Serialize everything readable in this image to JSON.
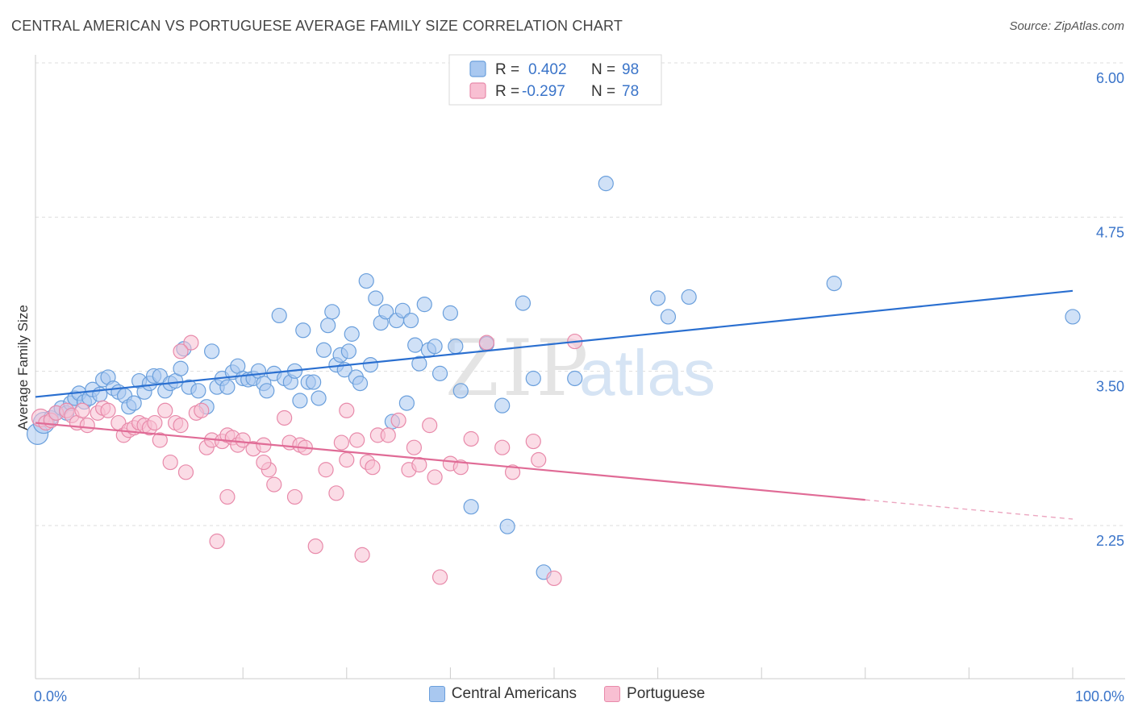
{
  "header": {
    "title": "CENTRAL AMERICAN VS PORTUGUESE AVERAGE FAMILY SIZE CORRELATION CHART",
    "source": "Source: ZipAtlas.com"
  },
  "watermark": {
    "zip": "ZIP",
    "atlas": "atlas"
  },
  "colors": {
    "blue_fill": "#a9c8f0",
    "blue_stroke": "#6a9fdc",
    "blue_line": "#2a6fd0",
    "pink_fill": "#f8bfd2",
    "pink_stroke": "#e88aaa",
    "pink_line": "#e06b96",
    "tick_label": "#3a74c9",
    "grid": "#dddddd"
  },
  "chart_data": {
    "type": "scatter",
    "title": "CENTRAL AMERICAN VS PORTUGUESE AVERAGE FAMILY SIZE CORRELATION CHART",
    "xlabel": "",
    "ylabel": "Average Family Size",
    "xlim": [
      0,
      100
    ],
    "ylim": [
      1.2,
      6.15
    ],
    "x_tick_labels": [
      "0.0%",
      "100.0%"
    ],
    "y_ticks": [
      2.25,
      3.5,
      4.75,
      6.0
    ],
    "y_tick_labels": [
      "2.25",
      "3.50",
      "4.75",
      "6.00"
    ],
    "grid": true,
    "legend_position": "top-center",
    "legend": [
      {
        "r_label": "R =",
        "r_value": "0.402",
        "n_label": "N =",
        "n_value": "98"
      },
      {
        "r_label": "R =",
        "r_value": "-0.297",
        "n_label": "N =",
        "n_value": "78"
      }
    ],
    "series": [
      {
        "name": "Central Americans",
        "color": "#a9c8f0",
        "trend": {
          "x": [
            0,
            100
          ],
          "y": [
            3.41,
            4.27
          ],
          "solid_until": 100
        },
        "points": [
          [
            0.2,
            3.11
          ],
          [
            0.8,
            3.2
          ],
          [
            1.5,
            3.24
          ],
          [
            2.0,
            3.28
          ],
          [
            2.5,
            3.32
          ],
          [
            3.0,
            3.28
          ],
          [
            3.4,
            3.36
          ],
          [
            3.8,
            3.4
          ],
          [
            4.2,
            3.44
          ],
          [
            4.7,
            3.37
          ],
          [
            5.2,
            3.4
          ],
          [
            5.5,
            3.47
          ],
          [
            6.2,
            3.43
          ],
          [
            6.5,
            3.55
          ],
          [
            7.0,
            3.57
          ],
          [
            7.5,
            3.48
          ],
          [
            8.0,
            3.45
          ],
          [
            8.6,
            3.42
          ],
          [
            9.0,
            3.33
          ],
          [
            9.5,
            3.36
          ],
          [
            10.0,
            3.54
          ],
          [
            10.5,
            3.45
          ],
          [
            11.0,
            3.52
          ],
          [
            11.4,
            3.58
          ],
          [
            12.0,
            3.58
          ],
          [
            12.5,
            3.46
          ],
          [
            13.0,
            3.52
          ],
          [
            13.5,
            3.54
          ],
          [
            14.0,
            3.64
          ],
          [
            14.3,
            3.8
          ],
          [
            14.8,
            3.49
          ],
          [
            15.7,
            3.46
          ],
          [
            16.5,
            3.33
          ],
          [
            17.0,
            3.78
          ],
          [
            17.5,
            3.49
          ],
          [
            18.0,
            3.56
          ],
          [
            18.5,
            3.49
          ],
          [
            19.0,
            3.61
          ],
          [
            19.5,
            3.66
          ],
          [
            20.0,
            3.56
          ],
          [
            20.5,
            3.55
          ],
          [
            21.0,
            3.56
          ],
          [
            21.5,
            3.62
          ],
          [
            22.0,
            3.52
          ],
          [
            22.3,
            3.46
          ],
          [
            23.0,
            3.6
          ],
          [
            23.5,
            4.07
          ],
          [
            24.0,
            3.56
          ],
          [
            24.6,
            3.53
          ],
          [
            25.0,
            3.62
          ],
          [
            25.5,
            3.38
          ],
          [
            25.8,
            3.95
          ],
          [
            26.3,
            3.53
          ],
          [
            26.8,
            3.53
          ],
          [
            27.3,
            3.4
          ],
          [
            27.8,
            3.79
          ],
          [
            28.2,
            3.99
          ],
          [
            28.6,
            4.1
          ],
          [
            29.0,
            3.67
          ],
          [
            29.4,
            3.75
          ],
          [
            29.8,
            3.63
          ],
          [
            30.2,
            3.78
          ],
          [
            30.5,
            3.92
          ],
          [
            30.9,
            3.57
          ],
          [
            31.3,
            3.52
          ],
          [
            31.9,
            4.35
          ],
          [
            32.3,
            3.67
          ],
          [
            32.8,
            4.21
          ],
          [
            33.3,
            4.01
          ],
          [
            33.8,
            4.1
          ],
          [
            34.4,
            3.21
          ],
          [
            34.8,
            4.03
          ],
          [
            35.4,
            4.11
          ],
          [
            35.8,
            3.36
          ],
          [
            36.2,
            4.03
          ],
          [
            36.6,
            3.83
          ],
          [
            37.0,
            3.68
          ],
          [
            37.5,
            4.16
          ],
          [
            37.9,
            3.79
          ],
          [
            38.5,
            3.82
          ],
          [
            39.0,
            3.6
          ],
          [
            40.0,
            4.09
          ],
          [
            40.5,
            3.82
          ],
          [
            41.0,
            3.46
          ],
          [
            42.0,
            2.52
          ],
          [
            43.5,
            3.84
          ],
          [
            45.0,
            3.34
          ],
          [
            47.0,
            4.17
          ],
          [
            48.0,
            3.56
          ],
          [
            49.0,
            1.99
          ],
          [
            52.0,
            3.56
          ],
          [
            55.0,
            5.14
          ],
          [
            60.0,
            4.21
          ],
          [
            61.0,
            4.06
          ],
          [
            63.0,
            4.22
          ],
          [
            77.0,
            4.33
          ],
          [
            100.0,
            4.06
          ],
          [
            45.5,
            2.36
          ]
        ]
      },
      {
        "name": "Portuguese",
        "color": "#f8bfd2",
        "trend": {
          "x": [
            0,
            100
          ],
          "y": [
            3.2,
            2.42
          ],
          "solid_until": 80
        },
        "points": [
          [
            0.5,
            3.24
          ],
          [
            1.0,
            3.2
          ],
          [
            1.5,
            3.22
          ],
          [
            2.0,
            3.28
          ],
          [
            3.0,
            3.3
          ],
          [
            3.5,
            3.26
          ],
          [
            4.0,
            3.2
          ],
          [
            4.5,
            3.3
          ],
          [
            5.0,
            3.18
          ],
          [
            6.0,
            3.28
          ],
          [
            6.5,
            3.32
          ],
          [
            7.0,
            3.3
          ],
          [
            8.0,
            3.2
          ],
          [
            8.5,
            3.1
          ],
          [
            9.0,
            3.14
          ],
          [
            9.5,
            3.16
          ],
          [
            10.0,
            3.2
          ],
          [
            10.5,
            3.18
          ],
          [
            11.0,
            3.16
          ],
          [
            11.5,
            3.2
          ],
          [
            12.0,
            3.06
          ],
          [
            12.5,
            3.3
          ],
          [
            13.0,
            2.88
          ],
          [
            13.5,
            3.2
          ],
          [
            14.0,
            3.18
          ],
          [
            14.5,
            2.8
          ],
          [
            15.0,
            3.85
          ],
          [
            15.5,
            3.28
          ],
          [
            16.0,
            3.3
          ],
          [
            16.5,
            3.0
          ],
          [
            17.0,
            3.06
          ],
          [
            17.5,
            2.24
          ],
          [
            18.0,
            3.05
          ],
          [
            18.5,
            3.1
          ],
          [
            19.0,
            3.08
          ],
          [
            19.5,
            3.02
          ],
          [
            20.0,
            3.06
          ],
          [
            21.0,
            2.99
          ],
          [
            22.0,
            3.02
          ],
          [
            22.5,
            2.82
          ],
          [
            23.0,
            2.7
          ],
          [
            24.0,
            3.24
          ],
          [
            24.5,
            3.04
          ],
          [
            25.0,
            2.6
          ],
          [
            25.5,
            3.02
          ],
          [
            26.0,
            3.0
          ],
          [
            27.0,
            2.2
          ],
          [
            28.0,
            2.82
          ],
          [
            29.0,
            2.63
          ],
          [
            29.5,
            3.04
          ],
          [
            30.0,
            2.9
          ],
          [
            31.0,
            3.06
          ],
          [
            31.5,
            2.13
          ],
          [
            32.0,
            2.88
          ],
          [
            32.5,
            2.84
          ],
          [
            33.0,
            3.1
          ],
          [
            34.0,
            3.1
          ],
          [
            35.0,
            3.22
          ],
          [
            36.0,
            2.82
          ],
          [
            36.5,
            3.0
          ],
          [
            37.0,
            2.86
          ],
          [
            38.0,
            3.18
          ],
          [
            38.5,
            2.76
          ],
          [
            39.0,
            1.95
          ],
          [
            40.0,
            2.87
          ],
          [
            41.0,
            2.84
          ],
          [
            42.0,
            3.07
          ],
          [
            43.5,
            3.85
          ],
          [
            45.0,
            3.0
          ],
          [
            46.0,
            2.8
          ],
          [
            48.0,
            3.05
          ],
          [
            48.5,
            2.9
          ],
          [
            50.0,
            1.94
          ],
          [
            52.0,
            3.86
          ],
          [
            18.5,
            2.6
          ],
          [
            14.0,
            3.78
          ],
          [
            30.0,
            3.3
          ],
          [
            22.0,
            2.88
          ]
        ]
      }
    ]
  }
}
